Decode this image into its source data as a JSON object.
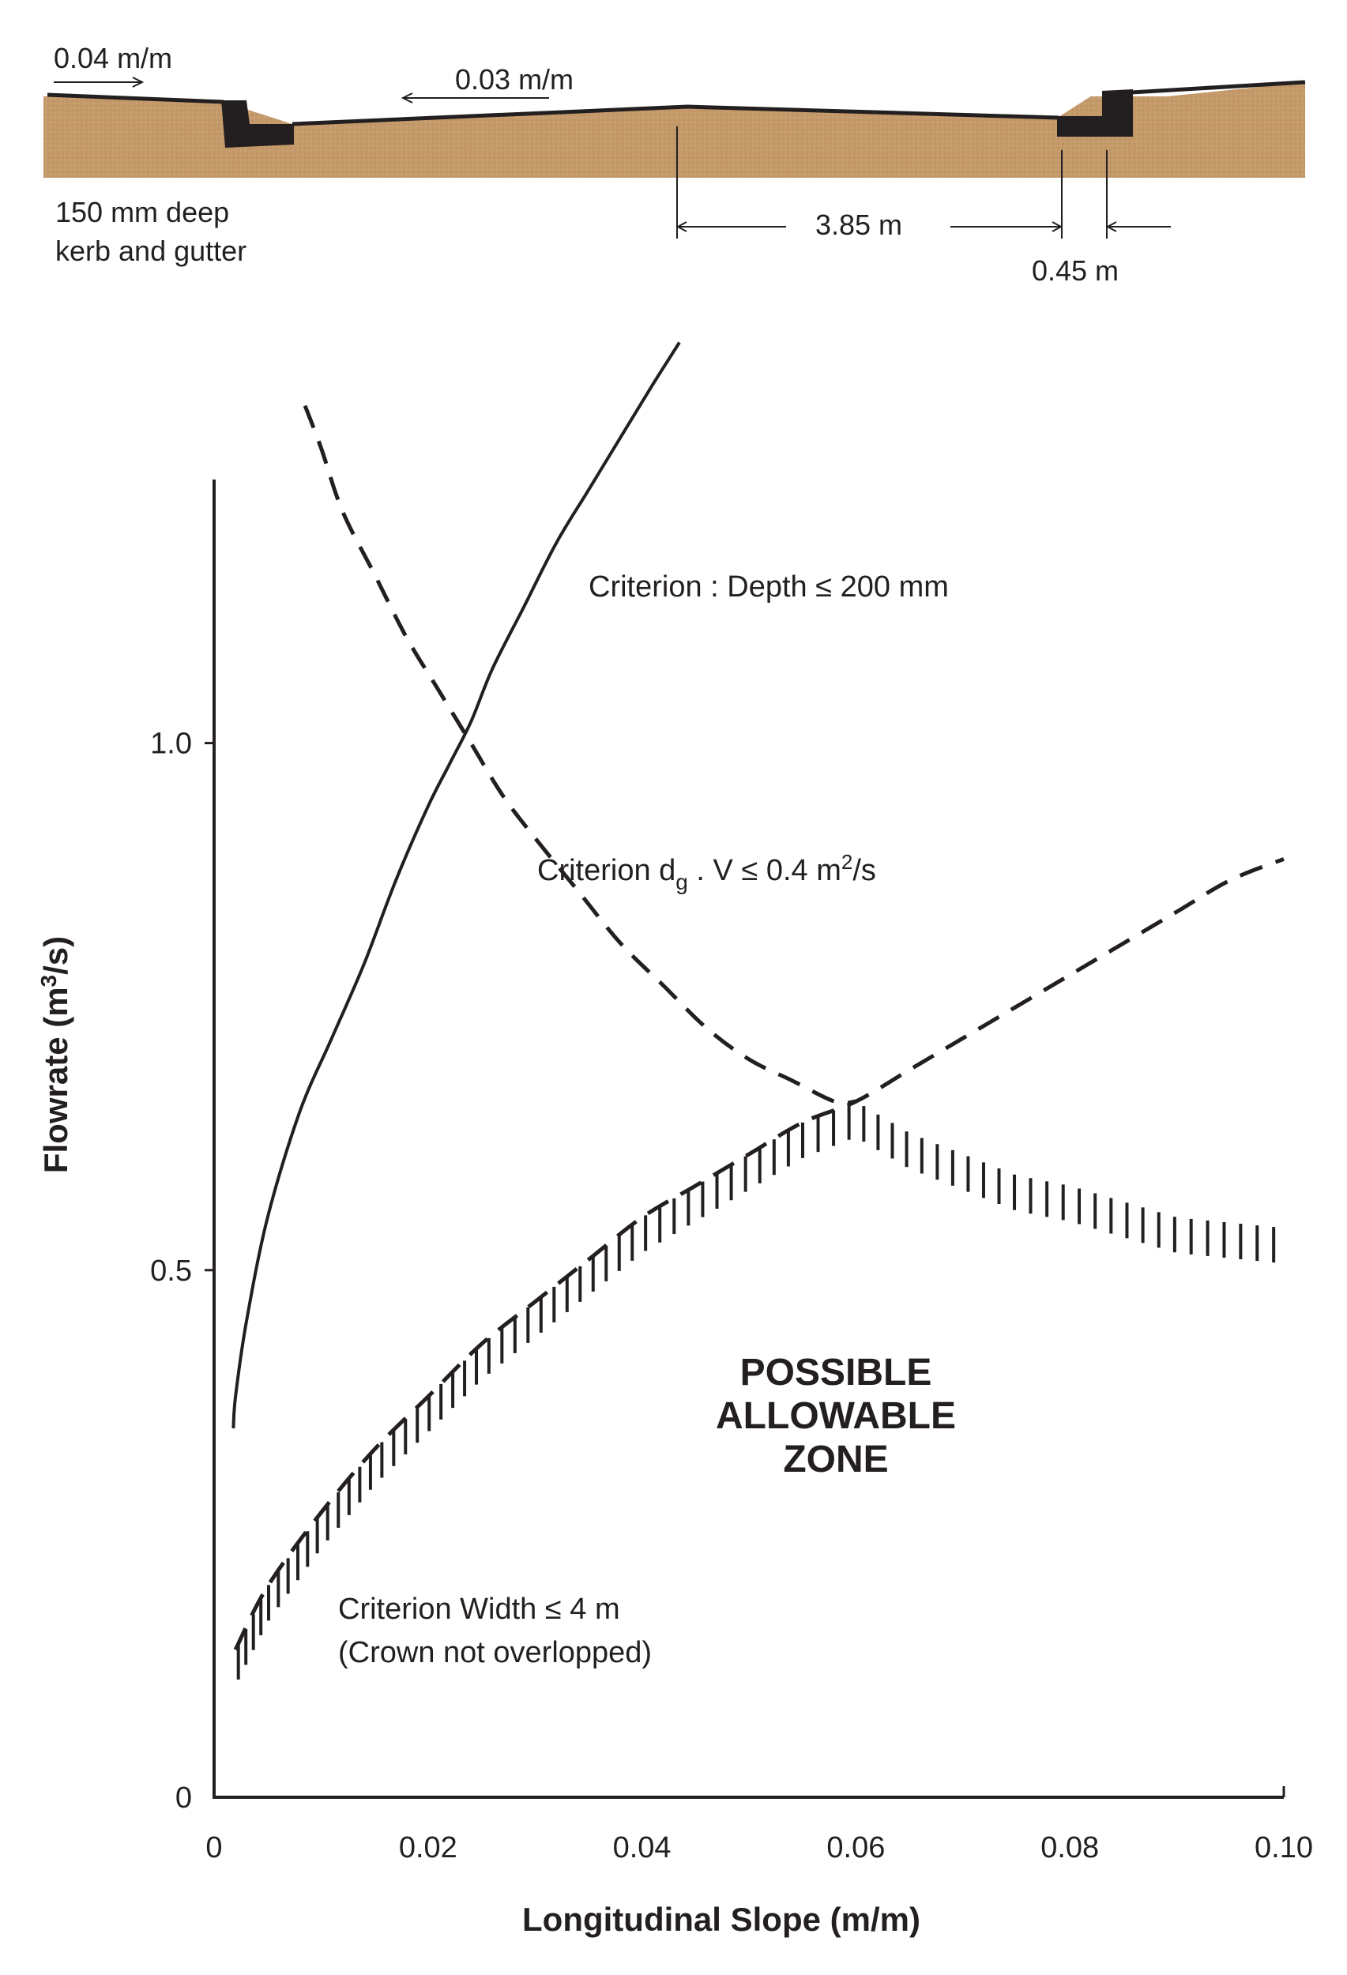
{
  "section": {
    "crossfall_left": "0.04 m/m",
    "crossfall_right": "0.03 m/m",
    "kerb_label_line1": "150 mm deep",
    "kerb_label_line2": "kerb and gutter",
    "dim_half_width": "3.85 m",
    "dim_gutter": "0.45 m",
    "colors": {
      "soil": "#c49a6a",
      "kerb": "#231f20",
      "line": "#231f20"
    }
  },
  "chart_data": {
    "type": "line",
    "xlabel": "Longitudinal Slope (m/m)",
    "ylabel_text": "Flowrate (m",
    "ylabel_sup": "3",
    "ylabel_tail": "/s)",
    "xlim": [
      0,
      0.1
    ],
    "ylim": [
      0,
      1.25
    ],
    "x_ticks": [
      {
        "value": 0,
        "label": "0"
      },
      {
        "value": 0.02,
        "label": "0.02"
      },
      {
        "value": 0.04,
        "label": "0.04"
      },
      {
        "value": 0.06,
        "label": "0.06"
      },
      {
        "value": 0.08,
        "label": "0.08"
      },
      {
        "value": 0.1,
        "label": "0.10"
      }
    ],
    "y_ticks": [
      {
        "value": 0,
        "label": "0"
      },
      {
        "value": 0.5,
        "label": "0.5"
      },
      {
        "value": 1.0,
        "label": "1.0"
      }
    ],
    "grid": false,
    "series": [
      {
        "key": "depth",
        "style": "solid",
        "x": [
          0.0018,
          0.002,
          0.003,
          0.005,
          0.008,
          0.011,
          0.014,
          0.017,
          0.02,
          0.022,
          0.024,
          0.026,
          0.029,
          0.032,
          0.035,
          0.038,
          0.041,
          0.0435
        ],
        "y": [
          0.35,
          0.38,
          0.45,
          0.55,
          0.65,
          0.72,
          0.79,
          0.87,
          0.94,
          0.98,
          1.02,
          1.07,
          1.13,
          1.19,
          1.24,
          1.29,
          1.34,
          1.38
        ]
      },
      {
        "key": "dgv",
        "style": "dashed",
        "x": [
          0.0085,
          0.01,
          0.012,
          0.015,
          0.018,
          0.021,
          0.024,
          0.027,
          0.03,
          0.034,
          0.038,
          0.042,
          0.046,
          0.05,
          0.054,
          0.058,
          0.06
        ],
        "y": [
          1.32,
          1.28,
          1.22,
          1.16,
          1.1,
          1.05,
          1.0,
          0.95,
          0.91,
          0.86,
          0.81,
          0.77,
          0.73,
          0.7,
          0.68,
          0.66,
          0.66
        ]
      },
      {
        "key": "width",
        "style": "dashed",
        "x": [
          0.002,
          0.005,
          0.01,
          0.015,
          0.02,
          0.025,
          0.03,
          0.035,
          0.04,
          0.045,
          0.05,
          0.055,
          0.06,
          0.065,
          0.07,
          0.075,
          0.08,
          0.085,
          0.09,
          0.095,
          0.1
        ],
        "y": [
          0.14,
          0.2,
          0.27,
          0.33,
          0.38,
          0.43,
          0.47,
          0.51,
          0.55,
          0.58,
          0.61,
          0.64,
          0.66,
          0.69,
          0.72,
          0.75,
          0.78,
          0.81,
          0.84,
          0.87,
          0.89
        ]
      }
    ],
    "boundary": {
      "x": [
        0.002,
        0.005,
        0.01,
        0.015,
        0.02,
        0.025,
        0.03,
        0.035,
        0.04,
        0.045,
        0.05,
        0.055,
        0.06,
        0.065,
        0.07,
        0.075,
        0.08,
        0.085,
        0.09,
        0.095,
        0.1
      ],
      "y": [
        0.14,
        0.2,
        0.27,
        0.33,
        0.38,
        0.43,
        0.47,
        0.51,
        0.55,
        0.58,
        0.61,
        0.64,
        0.66,
        0.63,
        0.61,
        0.59,
        0.58,
        0.565,
        0.55,
        0.545,
        0.54
      ]
    },
    "annotations": {
      "depth_label": "Criterion : Depth ≤ 200 mm",
      "dgv_label_a": "Criterion d",
      "dgv_label_sub": "g",
      "dgv_label_b": " . V  ≤ 0.4 m",
      "dgv_label_sup": "2",
      "dgv_label_c": "/s",
      "width_label_line1": "Criterion Width ≤ 4 m",
      "width_label_line2": "(Crown not overlopped)",
      "zone_line1": "POSSIBLE",
      "zone_line2": "ALLOWABLE",
      "zone_line3": "ZONE"
    }
  }
}
